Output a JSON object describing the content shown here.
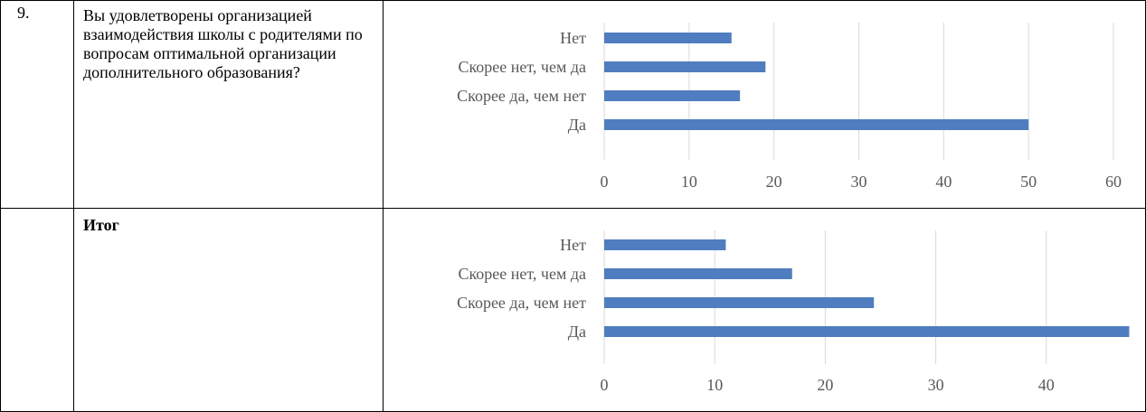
{
  "rows": [
    {
      "number": "9.",
      "question": "Вы удовлетворены организацией взаимодействия школы с родителями по вопросам оптимальной организации дополнительного образования?"
    },
    {
      "number": "",
      "question": "Итог"
    }
  ],
  "chart_data": [
    {
      "type": "bar",
      "orientation": "horizontal",
      "categories": [
        "Нет",
        "Скорее нет, чем да",
        "Скорее да, чем нет",
        "Да"
      ],
      "values": [
        15,
        19,
        16,
        50
      ],
      "xlim": [
        0,
        60
      ],
      "x_ticks": [
        "0",
        "10",
        "20",
        "30",
        "40",
        "50",
        "60"
      ],
      "grid": true,
      "bar_color": "#4f7dbf"
    },
    {
      "type": "bar",
      "orientation": "horizontal",
      "categories": [
        "Нет",
        "Скорее нет, чем да",
        "Скорее да, чем нет",
        "Да"
      ],
      "values": [
        11,
        17,
        24.4,
        47.5
      ],
      "xlim": [
        0,
        50
      ],
      "x_ticks": [
        "0",
        "10",
        "20",
        "30",
        "40",
        "50"
      ],
      "grid": true,
      "bar_color": "#4f7dbf"
    }
  ]
}
